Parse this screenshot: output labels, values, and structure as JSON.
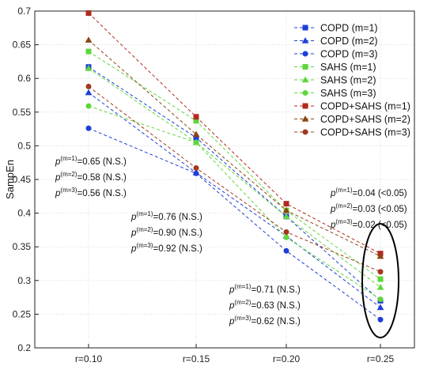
{
  "chart_data": {
    "type": "line",
    "title": "",
    "xlabel": "",
    "ylabel": "SampEn",
    "categories": [
      "r=0.10",
      "r=0.15",
      "r=0.20",
      "r=0.25"
    ],
    "ylim": [
      0.2,
      0.7
    ],
    "yticks": [
      "0.2",
      "0.25",
      "0.3",
      "0.35",
      "0.4",
      "0.45",
      "0.5",
      "0.55",
      "0.6",
      "0.65",
      "0.7"
    ],
    "grid": true,
    "legend_position": "top-right",
    "series": [
      {
        "name": "COPD (m=1)",
        "color": "#1f3fd6",
        "marker": "square",
        "values": [
          0.617,
          0.512,
          0.395,
          0.27
        ]
      },
      {
        "name": "COPD (m=2)",
        "color": "#1f3fd6",
        "marker": "triangle",
        "values": [
          0.579,
          0.46,
          0.366,
          0.26
        ]
      },
      {
        "name": "COPD (m=3)",
        "color": "#1f3fd6",
        "marker": "circle",
        "values": [
          0.526,
          0.459,
          0.344,
          0.242
        ]
      },
      {
        "name": "SAHS (m=1)",
        "color": "#5fd63a",
        "marker": "square",
        "values": [
          0.64,
          0.537,
          0.404,
          0.302
        ]
      },
      {
        "name": "SAHS (m=2)",
        "color": "#5fd63a",
        "marker": "triangle",
        "values": [
          0.615,
          0.505,
          0.395,
          0.29
        ]
      },
      {
        "name": "SAHS (m=3)",
        "color": "#5fd63a",
        "marker": "circle",
        "values": [
          0.559,
          0.505,
          0.364,
          0.272
        ]
      },
      {
        "name": "COPD+SAHS (m=1)",
        "color": "#b22a1e",
        "marker": "square",
        "values": [
          0.697,
          0.543,
          0.414,
          0.34
        ]
      },
      {
        "name": "COPD+SAHS (m=2)",
        "color": "#8b4513",
        "marker": "triangle",
        "values": [
          0.657,
          0.517,
          0.404,
          0.336
        ]
      },
      {
        "name": "COPD+SAHS (m=3)",
        "color": "#a0391e",
        "marker": "circle",
        "values": [
          0.588,
          0.467,
          0.372,
          0.313
        ]
      }
    ],
    "annotations": [
      {
        "lines": [
          [
            "m=1",
            "=0.65 (N.S.)"
          ],
          [
            "m=2",
            "=0.58 (N.S.)"
          ],
          [
            "m=3",
            "=0.56 (N.S.)"
          ]
        ]
      },
      {
        "lines": [
          [
            "m=1",
            "=0.76 (N.S.)"
          ],
          [
            "m=2",
            "=0.90 (N.S.)"
          ],
          [
            "m=3",
            "=0.92 (N.S.)"
          ]
        ]
      },
      {
        "lines": [
          [
            "m=1",
            "=0.71 (N.S.)"
          ],
          [
            "m=2",
            "=0.63 (N.S.)"
          ],
          [
            "m=3",
            "=0.62 (N.S.)"
          ]
        ]
      },
      {
        "lines": [
          [
            "m=1",
            "=0.04 (<0.05)"
          ],
          [
            "m=2",
            "=0.03 (<0.05)"
          ],
          [
            "m=3",
            "=0.02 (<0.05)"
          ]
        ]
      }
    ],
    "p_symbol": "p"
  }
}
